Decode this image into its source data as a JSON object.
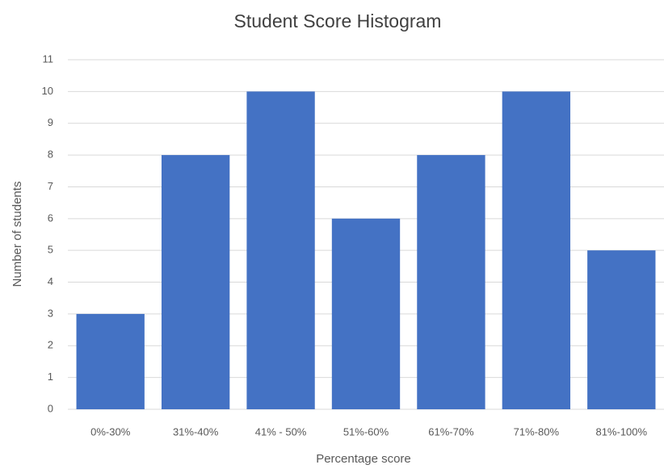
{
  "chart_data": {
    "type": "bar",
    "title": "Student Score Histogram",
    "x_label": "Percentage score",
    "y_label": "Number of students",
    "categories": [
      "0%-30%",
      "31%-40%",
      "41% - 50%",
      "51%-60%",
      "61%-70%",
      "71%-80%",
      "81%-100%"
    ],
    "values": [
      3,
      8,
      10,
      6,
      8,
      10,
      5
    ],
    "color": "#4472c4",
    "ylim": [
      0,
      11
    ],
    "yticks": [
      0,
      1,
      2,
      3,
      4,
      5,
      6,
      7,
      8,
      9,
      10,
      11
    ],
    "grid": true
  }
}
